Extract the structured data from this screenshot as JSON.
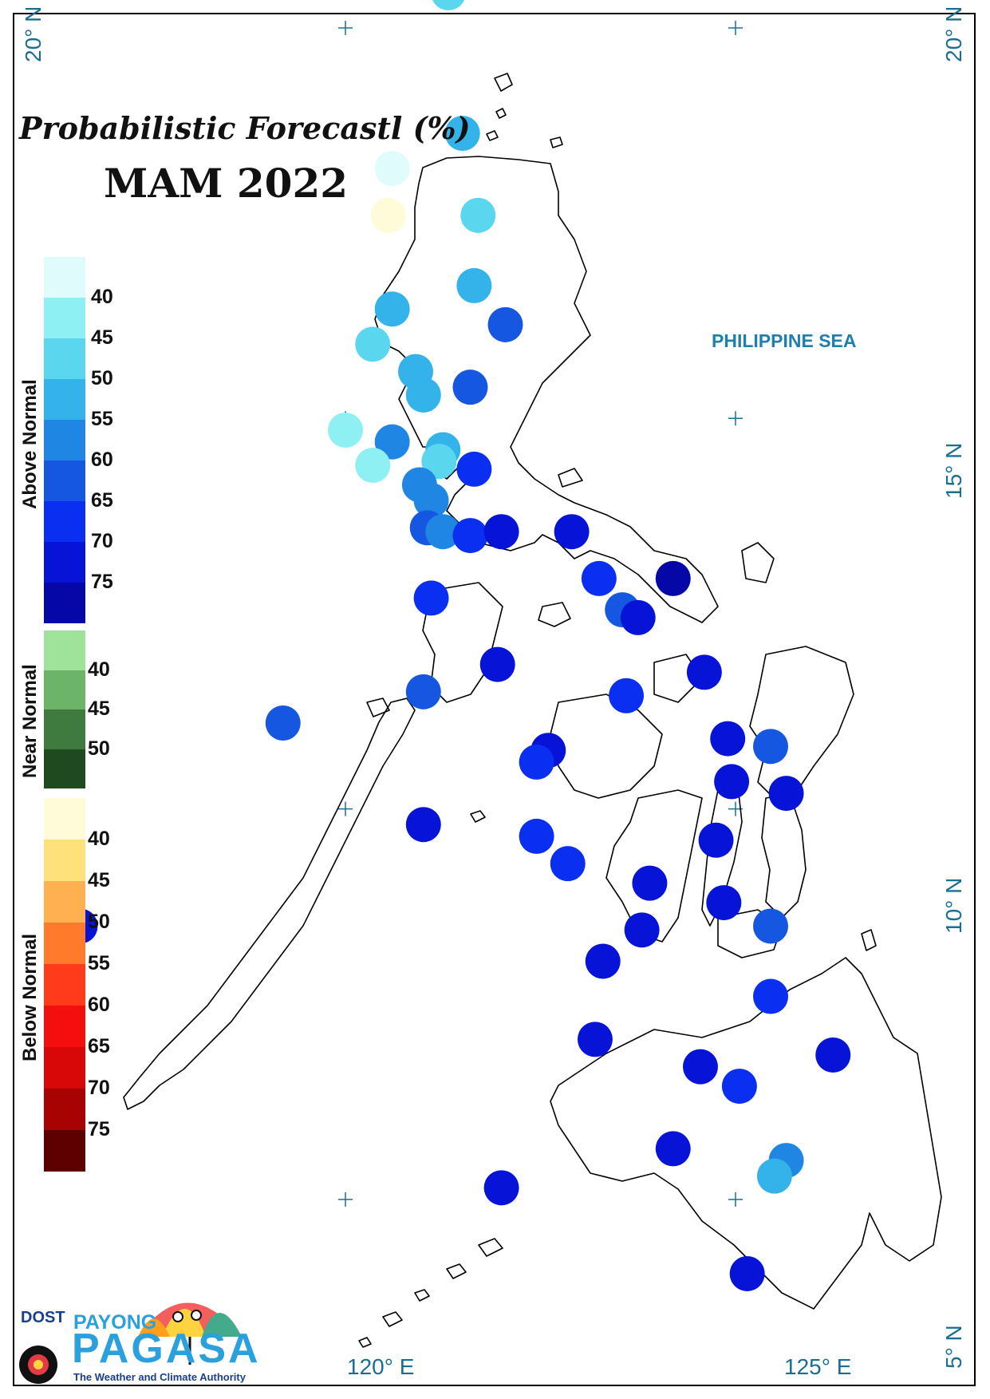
{
  "title": "Probabilistic Forecastl (%)",
  "season": "MAM 2022",
  "sea_label": "PHILIPPINE SEA",
  "coordinates": {
    "top_left": "20° N",
    "top_right": "20° N",
    "mid_right": "15° N",
    "low_right": "10° N",
    "bottom_right": "5° N",
    "bottom_lon1": "120° E",
    "bottom_lon2": "125° E"
  },
  "legend": {
    "above": {
      "label": "Above Normal",
      "ticks": [
        "40",
        "45",
        "50",
        "55",
        "60",
        "65",
        "70",
        "75"
      ],
      "colors": [
        "#e0fbfc",
        "#8ff0f3",
        "#5bd6ef",
        "#34b2ea",
        "#1f86e4",
        "#1557e0",
        "#0a2ff0",
        "#0714d8",
        "#0508a6"
      ]
    },
    "near": {
      "label": "Near Normal",
      "ticks": [
        "40",
        "45",
        "50"
      ],
      "colors": [
        "#9fe29a",
        "#6cb468",
        "#3f7a3f",
        "#1f4a20"
      ]
    },
    "below": {
      "label": "Below Normal",
      "ticks": [
        "40",
        "45",
        "50",
        "55",
        "60",
        "65",
        "70",
        "75"
      ],
      "colors": [
        "#fffbd8",
        "#ffe17c",
        "#ffb050",
        "#ff7a2a",
        "#ff3b1a",
        "#f40e0e",
        "#d90808",
        "#a80303",
        "#5e0000"
      ]
    }
  },
  "stations": [
    {
      "lon": 121.32,
      "lat": 20.45,
      "c": "#5bd6ef"
    },
    {
      "lon": 121.5,
      "lat": 18.65,
      "c": "#34b2ea"
    },
    {
      "lon": 120.6,
      "lat": 18.2,
      "c": "#e0fbfc"
    },
    {
      "lon": 120.55,
      "lat": 17.6,
      "c": "#fffbd8"
    },
    {
      "lon": 121.7,
      "lat": 17.6,
      "c": "#5bd6ef"
    },
    {
      "lon": 121.65,
      "lat": 16.7,
      "c": "#34b2ea"
    },
    {
      "lon": 120.6,
      "lat": 16.4,
      "c": "#34b2ea"
    },
    {
      "lon": 122.05,
      "lat": 16.2,
      "c": "#1557e0"
    },
    {
      "lon": 120.35,
      "lat": 15.95,
      "c": "#5bd6ef"
    },
    {
      "lon": 120.9,
      "lat": 15.6,
      "c": "#34b2ea"
    },
    {
      "lon": 121.6,
      "lat": 15.4,
      "c": "#1557e0"
    },
    {
      "lon": 121.0,
      "lat": 15.3,
      "c": "#34b2ea"
    },
    {
      "lon": 120.0,
      "lat": 14.85,
      "c": "#8ff0f3"
    },
    {
      "lon": 120.6,
      "lat": 14.7,
      "c": "#1f86e4"
    },
    {
      "lon": 121.25,
      "lat": 14.6,
      "c": "#34b2ea"
    },
    {
      "lon": 121.2,
      "lat": 14.45,
      "c": "#5bd6ef"
    },
    {
      "lon": 120.35,
      "lat": 14.4,
      "c": "#8ff0f3"
    },
    {
      "lon": 121.65,
      "lat": 14.35,
      "c": "#0a2ff0"
    },
    {
      "lon": 120.95,
      "lat": 14.15,
      "c": "#1f86e4"
    },
    {
      "lon": 121.1,
      "lat": 13.95,
      "c": "#1f86e4"
    },
    {
      "lon": 121.05,
      "lat": 13.6,
      "c": "#1557e0"
    },
    {
      "lon": 121.25,
      "lat": 13.55,
      "c": "#1f86e4"
    },
    {
      "lon": 121.6,
      "lat": 13.5,
      "c": "#0a2ff0"
    },
    {
      "lon": 122.0,
      "lat": 13.55,
      "c": "#0714d8"
    },
    {
      "lon": 122.9,
      "lat": 13.55,
      "c": "#0714d8"
    },
    {
      "lon": 121.1,
      "lat": 12.7,
      "c": "#0a2ff0"
    },
    {
      "lon": 123.25,
      "lat": 12.95,
      "c": "#0a2ff0"
    },
    {
      "lon": 124.2,
      "lat": 12.95,
      "c": "#0508a6"
    },
    {
      "lon": 123.55,
      "lat": 12.55,
      "c": "#1557e0"
    },
    {
      "lon": 123.75,
      "lat": 12.45,
      "c": "#0714d8"
    },
    {
      "lon": 121.95,
      "lat": 11.85,
      "c": "#0714d8"
    },
    {
      "lon": 121.0,
      "lat": 11.5,
      "c": "#1557e0"
    },
    {
      "lon": 123.6,
      "lat": 11.45,
      "c": "#0a2ff0"
    },
    {
      "lon": 124.6,
      "lat": 11.75,
      "c": "#0714d8"
    },
    {
      "lon": 119.2,
      "lat": 11.1,
      "c": "#1557e0"
    },
    {
      "lon": 124.9,
      "lat": 10.9,
      "c": "#0714d8"
    },
    {
      "lon": 125.45,
      "lat": 10.8,
      "c": "#1557e0"
    },
    {
      "lon": 122.6,
      "lat": 10.75,
      "c": "#0714d8"
    },
    {
      "lon": 122.45,
      "lat": 10.6,
      "c": "#0a2ff0"
    },
    {
      "lon": 124.95,
      "lat": 10.35,
      "c": "#0714d8"
    },
    {
      "lon": 125.65,
      "lat": 10.2,
      "c": "#0714d8"
    },
    {
      "lon": 121.0,
      "lat": 9.8,
      "c": "#0714d8"
    },
    {
      "lon": 122.45,
      "lat": 9.65,
      "c": "#0a2ff0"
    },
    {
      "lon": 124.75,
      "lat": 9.6,
      "c": "#0714d8"
    },
    {
      "lon": 122.85,
      "lat": 9.3,
      "c": "#0a2ff0"
    },
    {
      "lon": 123.9,
      "lat": 9.05,
      "c": "#0714d8"
    },
    {
      "lon": 124.85,
      "lat": 8.8,
      "c": "#0714d8"
    },
    {
      "lon": 116.6,
      "lat": 8.5,
      "c": "#0714d8"
    },
    {
      "lon": 125.45,
      "lat": 8.5,
      "c": "#1557e0"
    },
    {
      "lon": 123.8,
      "lat": 8.45,
      "c": "#0714d8"
    },
    {
      "lon": 116.4,
      "lat": 8.2,
      "c": "#0714d8"
    },
    {
      "lon": 123.3,
      "lat": 8.05,
      "c": "#0714d8"
    },
    {
      "lon": 125.45,
      "lat": 7.6,
      "c": "#0a2ff0"
    },
    {
      "lon": 123.2,
      "lat": 7.05,
      "c": "#0714d8"
    },
    {
      "lon": 124.55,
      "lat": 6.7,
      "c": "#0714d8"
    },
    {
      "lon": 126.25,
      "lat": 6.85,
      "c": "#0714d8"
    },
    {
      "lon": 125.05,
      "lat": 6.45,
      "c": "#0a2ff0"
    },
    {
      "lon": 124.2,
      "lat": 5.65,
      "c": "#0714d8"
    },
    {
      "lon": 125.65,
      "lat": 5.5,
      "c": "#1f86e4"
    },
    {
      "lon": 125.5,
      "lat": 5.3,
      "c": "#34b2ea"
    },
    {
      "lon": 122.0,
      "lat": 5.15,
      "c": "#0714d8"
    },
    {
      "lon": 125.15,
      "lat": 4.05,
      "c": "#0714d8"
    }
  ],
  "logo": {
    "agency": "DOST",
    "brand_top": "PAYONG",
    "brand_main": "PAGASA",
    "tagline": "The Weather and Climate Authority"
  }
}
